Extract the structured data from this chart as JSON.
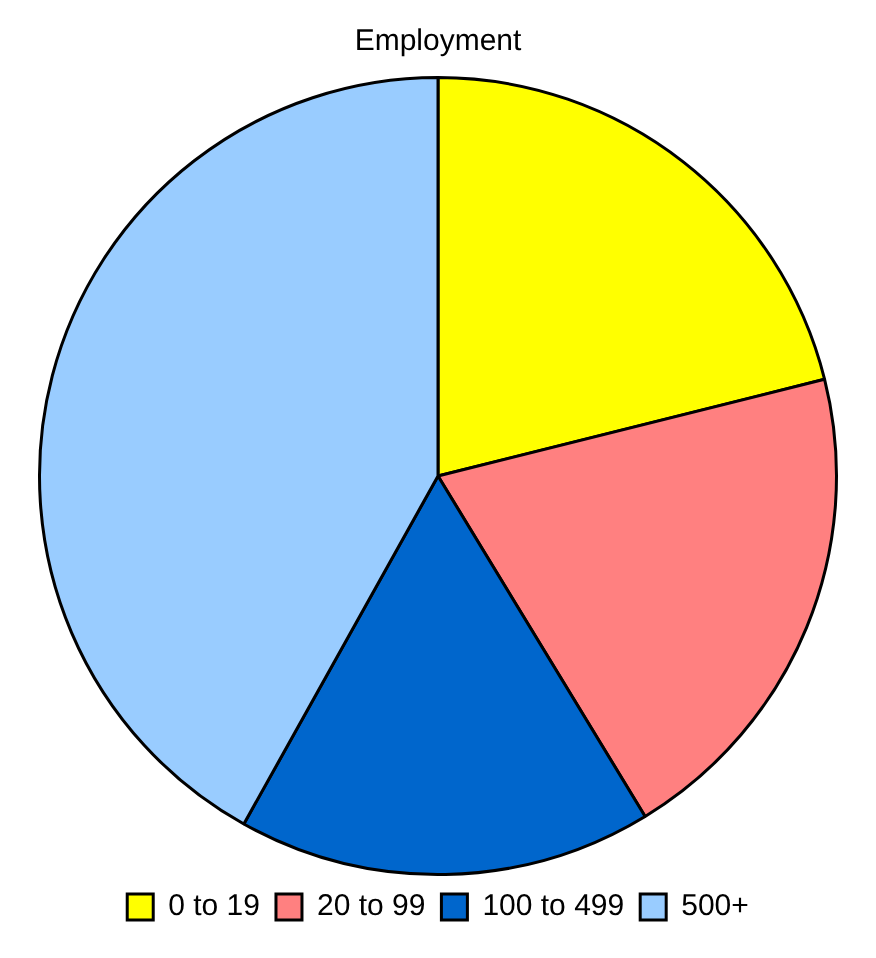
{
  "chart_data": {
    "type": "pie",
    "title": "Employment",
    "categories": [
      "0 to 19",
      "20 to 99",
      "100 to 499",
      "500+"
    ],
    "values": [
      21.1,
      20.2,
      16.8,
      41.9
    ],
    "colors": [
      "#ffff00",
      "#ff8080",
      "#0066cc",
      "#99ccff"
    ],
    "legend": "bottom"
  }
}
